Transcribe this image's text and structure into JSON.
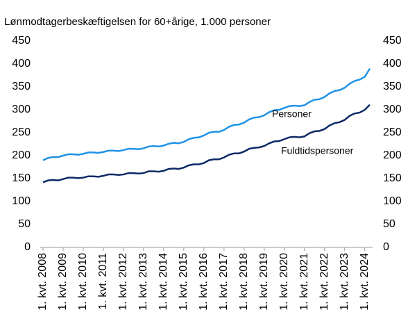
{
  "chart_data": {
    "type": "line",
    "title": "Lønmodtagerbeskæftigelsen for 60+årige, 1.000 personer",
    "categories": [
      "1. kvt. 2008",
      null,
      null,
      null,
      "1. kvt. 2009",
      null,
      null,
      null,
      "1. kvt. 2010",
      null,
      null,
      null,
      "1. kvt. 2011",
      null,
      null,
      null,
      "1. kvt. 2012",
      null,
      null,
      null,
      "1. kvt. 2013",
      null,
      null,
      null,
      "1. kvt. 2014",
      null,
      null,
      null,
      "1. kvt. 2015",
      null,
      null,
      null,
      "1. kvt. 2016",
      null,
      null,
      null,
      "1. kvt. 2017",
      null,
      null,
      null,
      "1. kvt. 2018",
      null,
      null,
      null,
      "1. kvt. 2019",
      null,
      null,
      null,
      "1. kvt. 2020",
      null,
      null,
      null,
      "1. kvt. 2021",
      null,
      null,
      null,
      "1. kvt. 2022",
      null,
      null,
      null,
      "1. kvt. 2023",
      null,
      null,
      null,
      "1. kvt. 2024",
      null
    ],
    "series": [
      {
        "name": "Personer",
        "color": "#1f93e6",
        "values": [
          190,
          195,
          197,
          197,
          200,
          203,
          203,
          202,
          204,
          207,
          207,
          206,
          208,
          211,
          211,
          210,
          212,
          215,
          215,
          214,
          216,
          220,
          221,
          220,
          222,
          226,
          228,
          227,
          230,
          236,
          239,
          240,
          244,
          250,
          252,
          252,
          256,
          263,
          267,
          268,
          272,
          279,
          283,
          284,
          288,
          295,
          299,
          300,
          304,
          308,
          309,
          308,
          310,
          317,
          322,
          323,
          328,
          336,
          341,
          343,
          348,
          357,
          363,
          366,
          372,
          390
        ]
      },
      {
        "name": "Fuldtidspersoner",
        "color": "#0d2a66",
        "values": [
          142,
          146,
          147,
          146,
          149,
          152,
          152,
          151,
          152,
          155,
          155,
          154,
          156,
          159,
          159,
          158,
          159,
          162,
          162,
          161,
          162,
          166,
          166,
          165,
          167,
          171,
          172,
          171,
          174,
          179,
          181,
          181,
          184,
          190,
          192,
          192,
          196,
          202,
          205,
          205,
          209,
          215,
          217,
          218,
          221,
          227,
          231,
          232,
          236,
          240,
          241,
          240,
          242,
          249,
          253,
          254,
          258,
          266,
          271,
          273,
          278,
          287,
          292,
          294,
          300,
          311
        ]
      }
    ],
    "ylim": [
      0,
      450
    ],
    "yticks": [
      0,
      50,
      100,
      150,
      200,
      250,
      300,
      350,
      400,
      450
    ],
    "y2lim": [
      0,
      450
    ],
    "y2ticks": [
      0,
      50,
      100,
      150,
      200,
      250,
      300,
      350,
      400,
      450
    ],
    "grid": false
  }
}
